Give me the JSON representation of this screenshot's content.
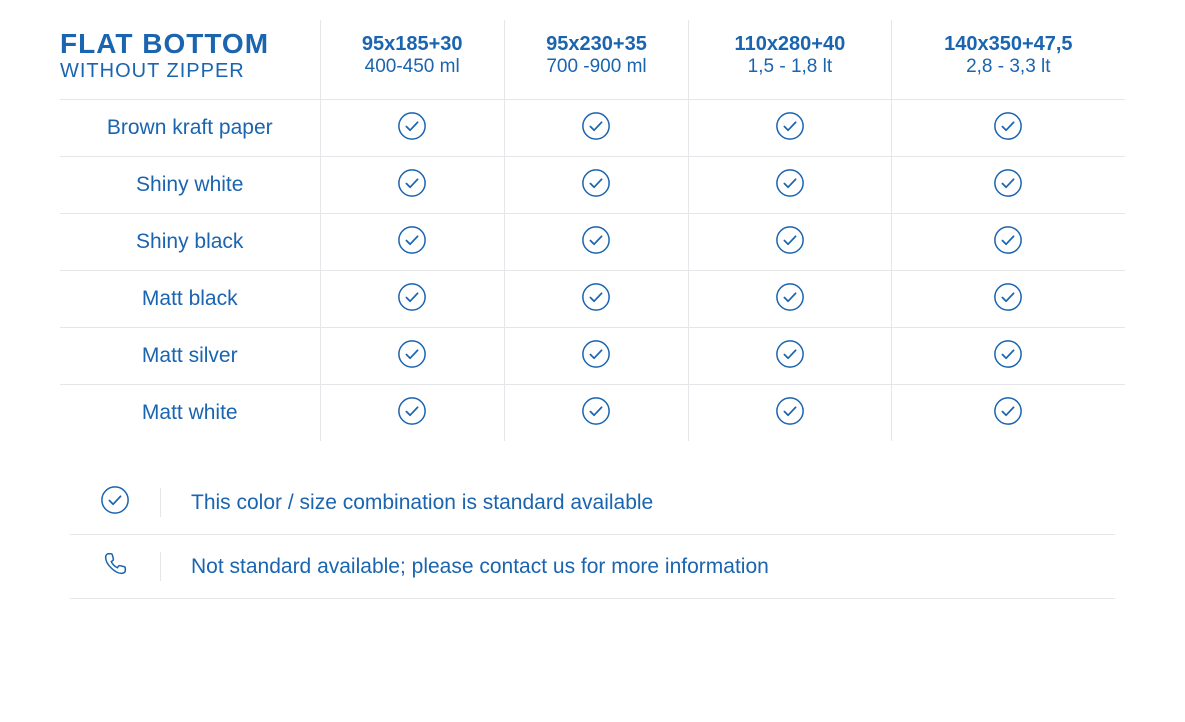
{
  "colors": {
    "primary": "#1a64b0",
    "border": "#e4e6e9",
    "bg": "#ffffff"
  },
  "header": {
    "title": "FLAT BOTTOM",
    "subtitle": "WITHOUT ZIPPER"
  },
  "columns": [
    {
      "size": "95x185+30",
      "volume": "400-450 ml"
    },
    {
      "size": "95x230+35",
      "volume": "700 -900 ml"
    },
    {
      "size": "110x280+40",
      "volume": "1,5 - 1,8 lt"
    },
    {
      "size": "140x350+47,5",
      "volume": "2,8 - 3,3 lt"
    }
  ],
  "rows": [
    {
      "label": "Brown kraft paper",
      "cells": [
        "check",
        "check",
        "check",
        "check"
      ]
    },
    {
      "label": "Shiny white",
      "cells": [
        "check",
        "check",
        "check",
        "check"
      ]
    },
    {
      "label": "Shiny black",
      "cells": [
        "check",
        "check",
        "check",
        "check"
      ]
    },
    {
      "label": "Matt black",
      "cells": [
        "check",
        "check",
        "check",
        "check"
      ]
    },
    {
      "label": "Matt silver",
      "cells": [
        "check",
        "check",
        "check",
        "check"
      ]
    },
    {
      "label": "Matt white",
      "cells": [
        "check",
        "check",
        "check",
        "check"
      ]
    }
  ],
  "legend": [
    {
      "icon": "check",
      "text": "This color / size combination is standard available"
    },
    {
      "icon": "phone",
      "text": "Not standard available; please contact us for more information"
    }
  ],
  "icon_style": {
    "circle_radius": 14,
    "stroke_width": 1.6
  }
}
